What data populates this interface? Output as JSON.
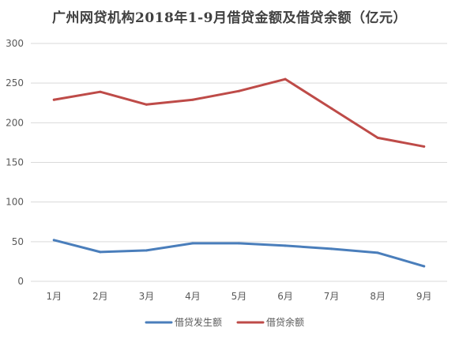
{
  "chart_data": {
    "type": "line",
    "title": "广州网贷机构2018年1-9月借贷金额及借贷余额（亿元）",
    "categories": [
      "1月",
      "2月",
      "3月",
      "4月",
      "5月",
      "6月",
      "7月",
      "8月",
      "9月"
    ],
    "series": [
      {
        "name": "借贷发生额",
        "color": "#4a7ebb",
        "values": [
          52,
          37,
          39,
          48,
          48,
          45,
          41,
          36,
          19
        ]
      },
      {
        "name": "借贷余额",
        "color": "#be4b48",
        "values": [
          229,
          239,
          223,
          229,
          240,
          255,
          218,
          181,
          170
        ]
      }
    ],
    "ylim": [
      0,
      300
    ],
    "yticks": [
      "0",
      "50",
      "100",
      "150",
      "200",
      "250",
      "300"
    ],
    "xlabel": "",
    "ylabel": "",
    "grid": true,
    "legend": "bottom"
  }
}
